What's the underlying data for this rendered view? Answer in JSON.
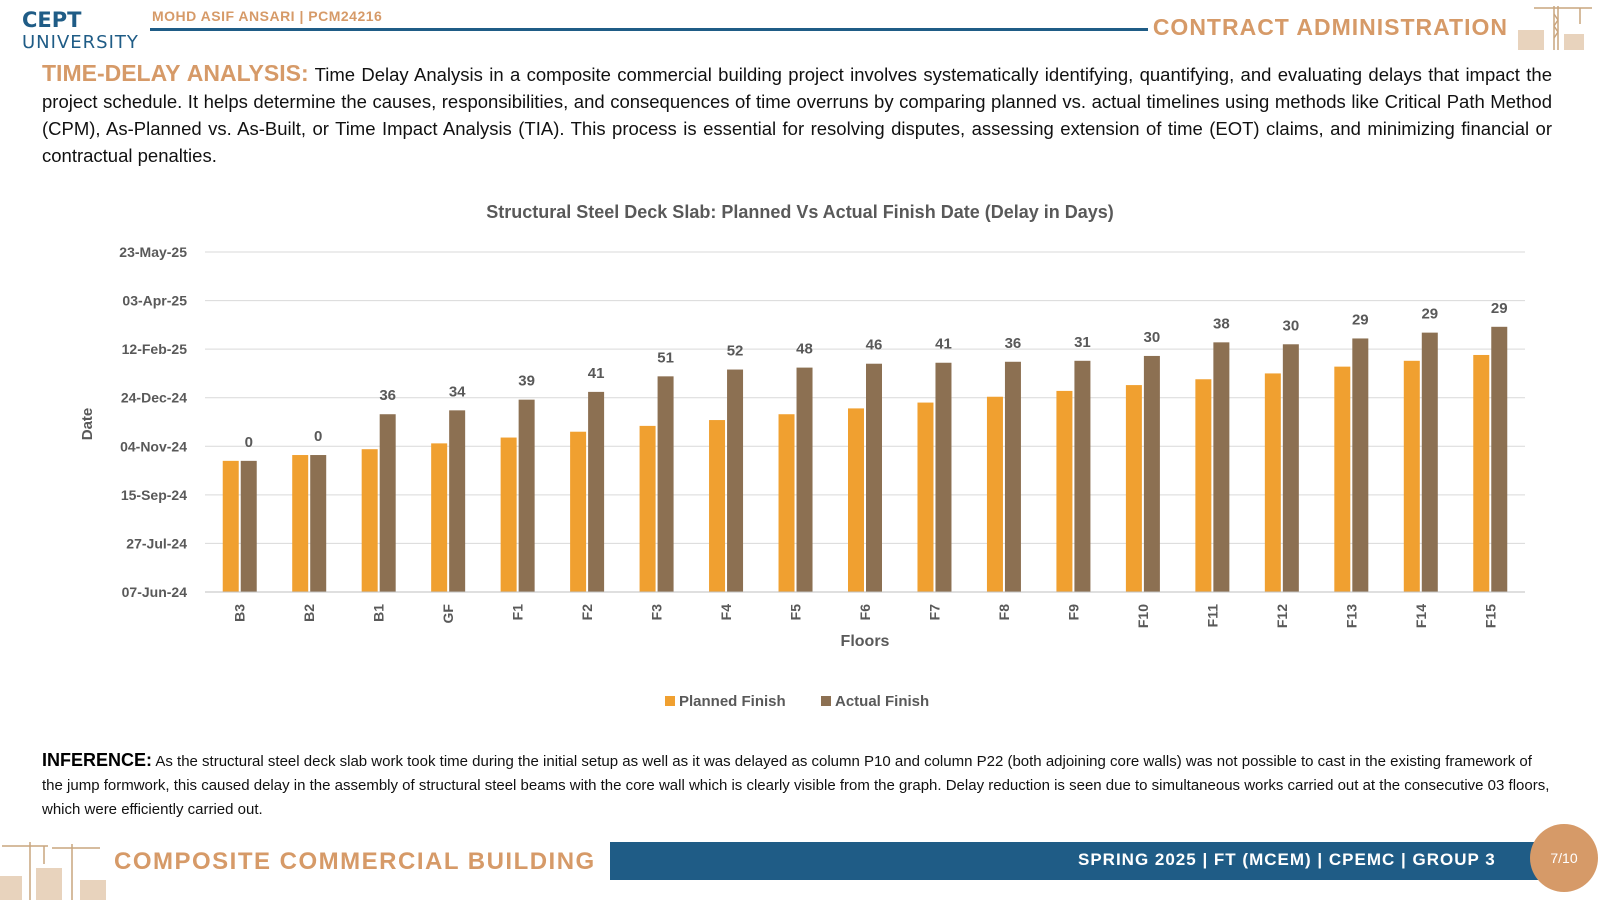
{
  "header": {
    "logo_line1": "CEPT",
    "logo_line2": "UNIVERSITY",
    "author": "MOHD ASIF ANSARI | PCM24216",
    "title": "CONTRACT ADMINISTRATION"
  },
  "intro": {
    "heading": "TIME-DELAY ANALYSIS:",
    "text": "Time Delay Analysis in a composite commercial building project involves systematically identifying, quantifying, and evaluating delays that impact the project schedule. It helps determine the causes, responsibilities, and consequences of time overruns by comparing planned vs. actual timelines using methods like Critical Path Method (CPM), As-Planned vs. As-Built, or Time Impact Analysis (TIA). This process is essential for resolving disputes, assessing extension of time (EOT) claims, and minimizing financial or contractual penalties."
  },
  "chart_data": {
    "type": "bar",
    "title": "Structural Steel Deck Slab: Planned Vs Actual Finish Date (Delay in Days)",
    "xlabel": "Floors",
    "ylabel": "Date",
    "y_ticks": [
      "07-Jun-24",
      "27-Jul-24",
      "15-Sep-24",
      "04-Nov-24",
      "24-Dec-24",
      "12-Feb-25",
      "03-Apr-25",
      "23-May-25"
    ],
    "ylim": [
      "07-Jun-24",
      "23-May-25"
    ],
    "categories": [
      "B3",
      "B2",
      "B1",
      "GF",
      "F1",
      "F2",
      "F3",
      "F4",
      "F5",
      "F6",
      "F7",
      "F8",
      "F9",
      "F10",
      "F11",
      "F12",
      "F13",
      "F14",
      "F15"
    ],
    "series": [
      {
        "name": "Planned Finish",
        "color": "#f0a030",
        "values": [
          "2024-10-20",
          "2024-10-26",
          "2024-11-01",
          "2024-11-07",
          "2024-11-13",
          "2024-11-19",
          "2024-11-25",
          "2024-12-01",
          "2024-12-07",
          "2024-12-13",
          "2024-12-19",
          "2024-12-25",
          "2024-12-31",
          "2025-01-06",
          "2025-01-12",
          "2025-01-18",
          "2025-01-25",
          "2025-01-31",
          "2025-02-06"
        ]
      },
      {
        "name": "Actual Finish",
        "color": "#8c7052",
        "values": [
          "2024-10-20",
          "2024-10-26",
          "2024-12-07",
          "2024-12-11",
          "2024-12-22",
          "2024-12-30",
          "2025-01-15",
          "2025-01-22",
          "2025-01-24",
          "2025-01-28",
          "2025-01-29",
          "2025-01-30",
          "2025-01-31",
          "2025-02-05",
          "2025-02-19",
          "2025-02-17",
          "2025-02-23",
          "2025-03-01",
          "2025-03-07"
        ],
        "data_labels": [
          0,
          0,
          36,
          34,
          39,
          41,
          51,
          52,
          48,
          46,
          41,
          36,
          31,
          30,
          38,
          30,
          29,
          29,
          29
        ]
      }
    ],
    "grid": true,
    "legend_position": "bottom"
  },
  "inference": {
    "heading": "INFERENCE:",
    "text": "As the structural steel deck slab work took time during the initial setup as well as it was delayed as column P10 and column P22 (both adjoining core walls) was not possible to cast in the existing framework of the jump formwork, this caused delay in the assembly of structural steel beams with the core wall which is clearly visible from the graph. Delay reduction is seen due to simultaneous works carried out at the consecutive 03 floors, which were efficiently carried out."
  },
  "footer": {
    "title": "COMPOSITE COMMERCIAL BUILDING",
    "info": "SPRING 2025 | FT (MCEM) | CPEMC | GROUP 3",
    "page": "7/10"
  },
  "colors": {
    "brand_blue": "#1f5c86",
    "accent_tan": "#d69a68",
    "grid": "#d9d9d9",
    "axis_text": "#595959"
  },
  "icons": {
    "top_right": "construction-crane-icon",
    "bottom_left": "construction-crane-icon"
  }
}
